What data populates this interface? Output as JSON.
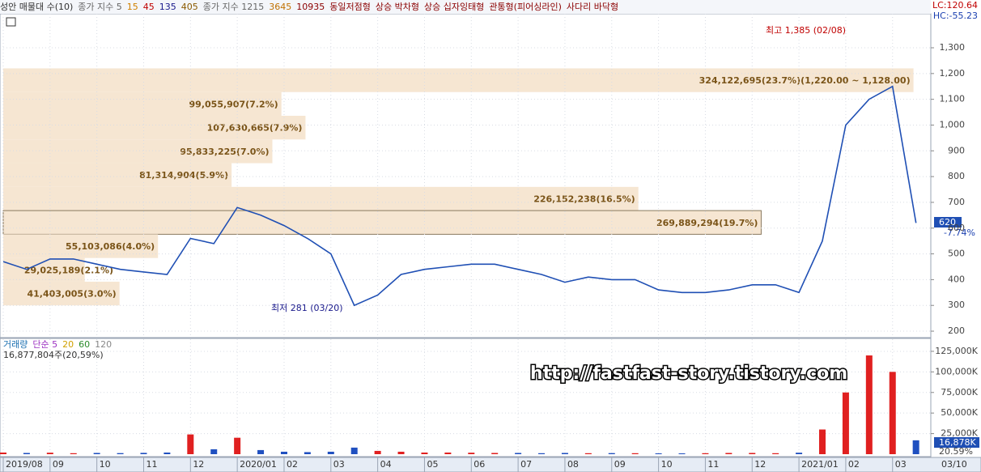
{
  "chart_data": [
    {
      "type": "line",
      "legend": [
        {
          "name": "성안 매물대 수(10)",
          "color": "#333333"
        },
        {
          "name": "종가 지수 5",
          "color": "#666666"
        },
        {
          "name": "15",
          "color": "#d08000"
        },
        {
          "name": "45",
          "color": "#c00000"
        },
        {
          "name": "135",
          "color": "#1a1a8c"
        },
        {
          "name": "405",
          "color": "#8b5a00"
        },
        {
          "name": "종가 지수 1215",
          "color": "#666666"
        },
        {
          "name": "3645",
          "color": "#c07000"
        },
        {
          "name": "10935",
          "color": "#8b0000"
        },
        {
          "name": "동일저점형",
          "color": "#8b0000"
        },
        {
          "name": "상승 박차형",
          "color": "#8b0000"
        },
        {
          "name": "상승 십자잉태형",
          "color": "#8b0000"
        },
        {
          "name": "관통형(피어싱라인)",
          "color": "#8b0000"
        },
        {
          "name": "사다리 바닥형",
          "color": "#8b0000"
        }
      ],
      "lc_label": "LC:120.64",
      "hc_label": "HC:-55.23",
      "high_note": "최고 1,385 (02/08)",
      "low_note": "최저 281 (03/20)",
      "last_label": "620",
      "change_label": "-7.74%",
      "series": [
        {
          "name": "종가",
          "color": "#1f4fb4",
          "values": [
            470,
            440,
            480,
            480,
            460,
            440,
            430,
            420,
            560,
            540,
            680,
            650,
            610,
            560,
            500,
            300,
            340,
            420,
            440,
            450,
            460,
            460,
            440,
            420,
            390,
            410,
            400,
            400,
            360,
            350,
            350,
            360,
            380,
            380,
            350,
            550,
            1000,
            1100,
            1150,
            620
          ]
        }
      ],
      "xlim": [
        0,
        39.6
      ],
      "ylim": [
        175,
        1432
      ],
      "yticks": [
        200,
        300,
        400,
        500,
        600,
        700,
        800,
        900,
        {
          "value": 1000,
          "label": "1,000"
        },
        {
          "value": 1100,
          "label": "1,100"
        },
        {
          "value": 1200,
          "label": "1,200"
        },
        {
          "value": 1300,
          "label": "1,300"
        }
      ],
      "grid": true,
      "profile": {
        "color": "#f6e6d2",
        "text_color": "#7a5418",
        "xlim": [
          0,
          330000000
        ],
        "values": [
          324122695,
          99055907,
          107630665,
          95833225,
          81314904,
          226152238,
          269889294,
          55103086,
          29025189,
          41403005
        ],
        "value_labels": [
          "324,122,695(23.7%)(1,220.00 ~ 1,128.00)",
          "99,055,907(7.2%)",
          "107,630,665(7.9%)",
          "95,833,225(7.0%)",
          "81,314,904(5.9%)",
          "226,152,238(16.5%)",
          "269,889,294(19.7%)",
          "55,103,086(4.0%)",
          "29,025,189(2.1%)",
          "41,403,005(3.0%)"
        ],
        "high": [
          1220,
          1128,
          1036,
          944,
          852,
          760,
          668,
          576,
          484,
          392
        ],
        "low": [
          1128,
          1036,
          944,
          852,
          760,
          668,
          576,
          484,
          392,
          300
        ]
      }
    },
    {
      "type": "bar",
      "legend": [
        {
          "name": "거래량",
          "color": "#1a6fb0"
        },
        {
          "name": "단순 5",
          "color": "#9b30c0"
        },
        {
          "name": "20",
          "color": "#d0a000"
        },
        {
          "name": "60",
          "color": "#2a8a2a"
        },
        {
          "name": "120",
          "color": "#888888"
        }
      ],
      "info": "16,877,804주(20,59%)",
      "last_label": "16,878K",
      "ratio_label": "20.59%",
      "watermark": "http://fastfast-story.tistory.com",
      "up_color": "#e02020",
      "down_color": "#2050c0",
      "values": [
        2000000,
        1500000,
        1800000,
        1200000,
        1500000,
        1300000,
        1600000,
        2000000,
        24000000,
        6000000,
        20000000,
        5000000,
        3000000,
        2500000,
        3000000,
        8000000,
        4000000,
        3000000,
        2000000,
        2000000,
        1800000,
        1500000,
        1500000,
        1200000,
        1500000,
        1200000,
        1300000,
        1200000,
        1000000,
        1000000,
        1200000,
        1500000,
        1500000,
        1200000,
        1800000,
        30000000,
        75000000,
        120000000,
        100000000,
        16877804
      ],
      "xlim": [
        0,
        39.6
      ],
      "ylim": [
        0,
        139700000
      ],
      "yticks": [
        {
          "value": 25000000,
          "label": "25,000K"
        },
        {
          "value": 50000000,
          "label": "50,000K"
        },
        {
          "value": 75000000,
          "label": "75,000K"
        },
        {
          "value": 100000000,
          "label": "100,000K"
        },
        {
          "value": 125000000,
          "label": "125,000K"
        }
      ],
      "xticks": [
        {
          "value": 0,
          "label": "2019/08"
        },
        {
          "value": 2,
          "label": "09"
        },
        {
          "value": 4,
          "label": "10"
        },
        {
          "value": 6,
          "label": "11"
        },
        {
          "value": 8,
          "label": "12"
        },
        {
          "value": 10,
          "label": "2020/01"
        },
        {
          "value": 12,
          "label": "02"
        },
        {
          "value": 14,
          "label": "03"
        },
        {
          "value": 16,
          "label": "04"
        },
        {
          "value": 18,
          "label": "05"
        },
        {
          "value": 20,
          "label": "06"
        },
        {
          "value": 22,
          "label": "07"
        },
        {
          "value": 24,
          "label": "08"
        },
        {
          "value": 26,
          "label": "09"
        },
        {
          "value": 28,
          "label": "10"
        },
        {
          "value": 30,
          "label": "11"
        },
        {
          "value": 32,
          "label": "12"
        },
        {
          "value": 34,
          "label": "2021/01"
        },
        {
          "value": 36,
          "label": "02"
        },
        {
          "value": 38,
          "label": "03"
        }
      ],
      "last_date": "03/10",
      "grid": true
    }
  ]
}
